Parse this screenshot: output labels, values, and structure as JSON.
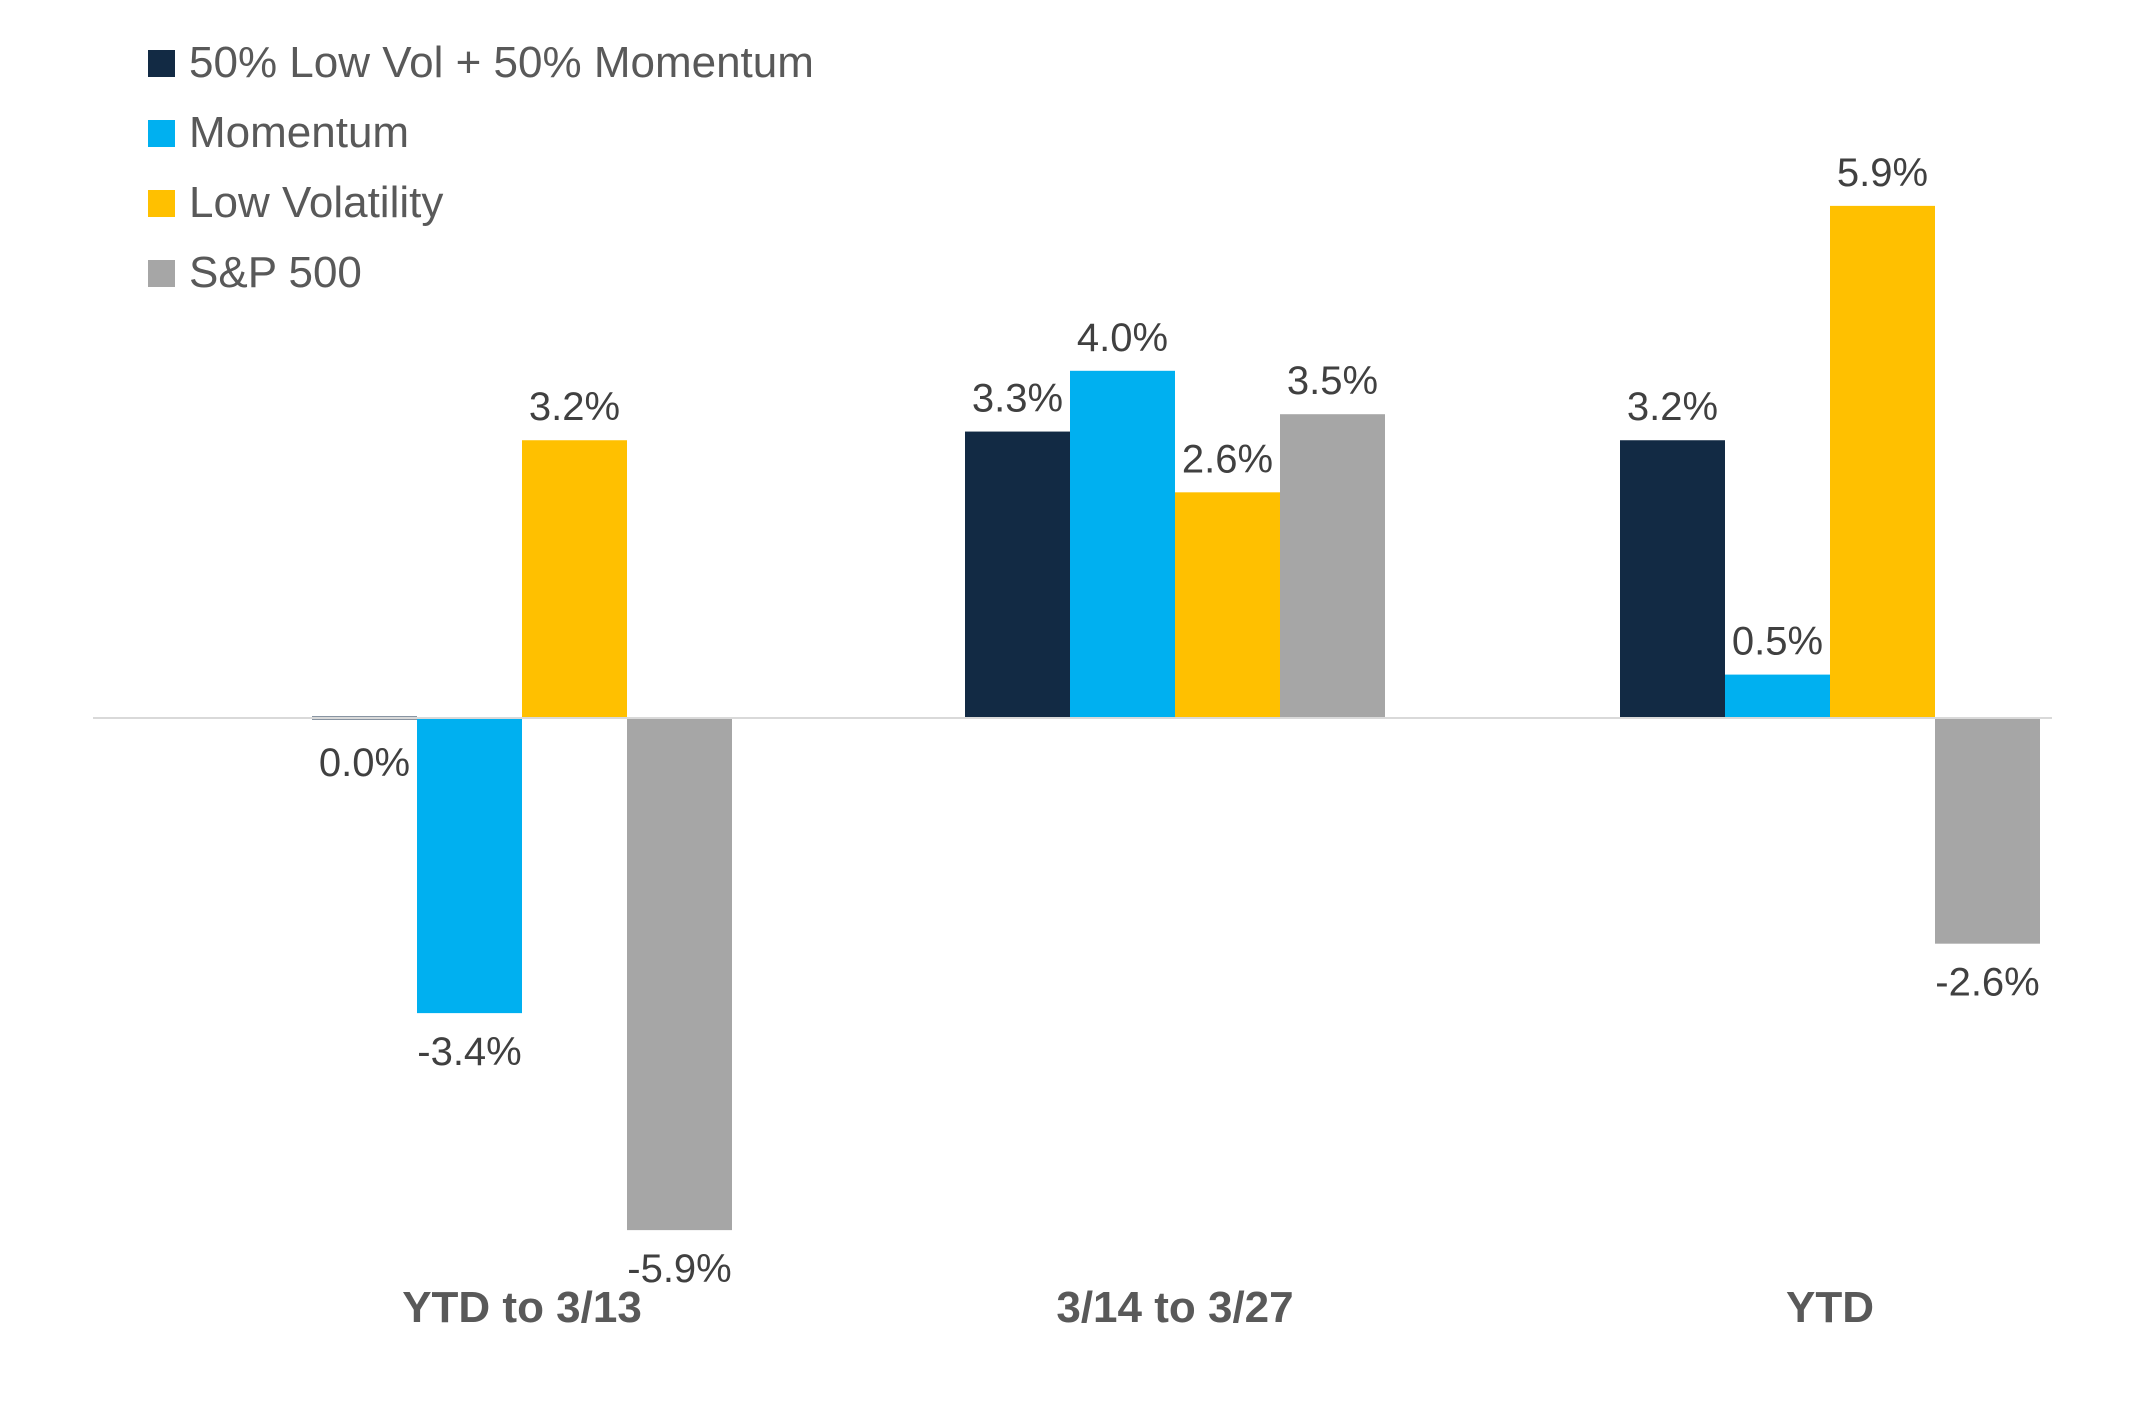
{
  "chart_data": {
    "type": "bar",
    "title": "",
    "xlabel": "",
    "ylabel": "",
    "categories": [
      "YTD to 3/13",
      "3/14 to 3/27",
      "YTD"
    ],
    "series": [
      {
        "name": "50% Low Vol + 50% Momentum",
        "color": "#122a44",
        "values": [
          0.0,
          3.3,
          3.2
        ],
        "labels": [
          "0.0%",
          "3.3%",
          "3.2%"
        ]
      },
      {
        "name": "Momentum",
        "color": "#00b0f0",
        "values": [
          -3.4,
          4.0,
          0.5
        ],
        "labels": [
          "-3.4%",
          "4.0%",
          "0.5%"
        ]
      },
      {
        "name": "Low Volatility",
        "color": "#ffc000",
        "values": [
          3.2,
          2.6,
          5.9
        ],
        "labels": [
          "3.2%",
          "2.6%",
          "5.9%"
        ]
      },
      {
        "name": "S&P 500",
        "color": "#a6a6a6",
        "values": [
          -5.9,
          3.5,
          -2.6
        ],
        "labels": [
          "-5.9%",
          "3.5%",
          "-2.6%"
        ]
      }
    ],
    "ylim": [
      -6.5,
      6.5
    ],
    "grid": false,
    "legend": "top-left"
  },
  "style": {
    "axis_color": "#d9d9d9",
    "label_color": "#404040",
    "category_color": "#595959"
  }
}
